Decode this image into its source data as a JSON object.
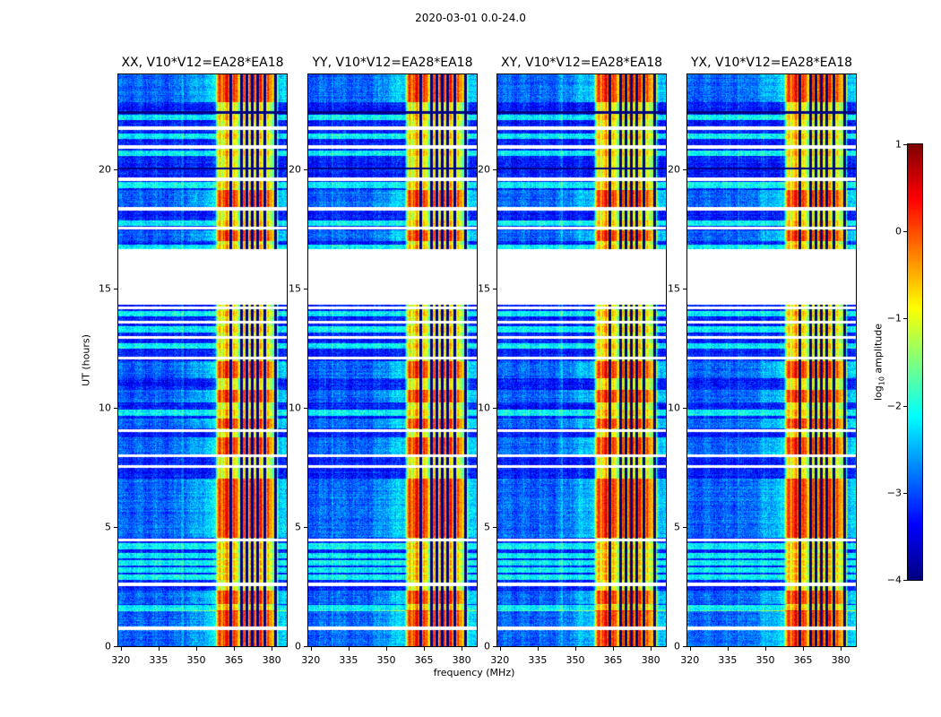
{
  "chart_data": {
    "type": "heatmap",
    "title": "2020-03-01 0.0-24.0",
    "xlabel": "frequency (MHz)",
    "ylabel": "UT (hours)",
    "xlim": [
      319,
      386
    ],
    "ylim": [
      0,
      24
    ],
    "x_ticks": [
      320,
      335,
      350,
      365,
      380
    ],
    "y_ticks": [
      0,
      5,
      10,
      15,
      20
    ],
    "colors": {
      "figure_background": "#ffffff",
      "axes_text": "#000000",
      "low_amplitude_blue": "#0030ff",
      "band_yellow": "#e8e800",
      "band_red": "#ff3c00"
    },
    "panels": [
      {
        "title": "XX, V10*V12=EA28*EA18",
        "seed": 11
      },
      {
        "title": "YY, V10*V12=EA28*EA18",
        "seed": 23
      },
      {
        "title": "XY, V10*V12=EA28*EA18",
        "seed": 37
      },
      {
        "title": "YX, V10*V12=EA28*EA18",
        "seed": 49
      }
    ],
    "colorbar": {
      "label_prefix": "log",
      "label_sub": "10",
      "label_suffix": " amplitude",
      "ticks": [
        "1",
        "0",
        "−1",
        "−2",
        "−3",
        "−4"
      ],
      "vmin": -4,
      "vmax": 1,
      "colormap": "jet"
    },
    "features": {
      "background_level": -3.25,
      "band": {
        "f0": 358,
        "f1": 382,
        "level": -1.05
      },
      "data_gap_hours": [
        14.35,
        16.65
      ],
      "bright_intervals": [
        [
          0,
          1.5
        ],
        [
          1.75,
          2.35
        ],
        [
          4.55,
          7.05
        ],
        [
          8.05,
          8.75
        ],
        [
          9.15,
          9.55
        ],
        [
          10.25,
          10.75
        ],
        [
          11.25,
          11.95
        ],
        [
          17.0,
          17.45
        ],
        [
          18.45,
          19.15
        ],
        [
          22.85,
          24
        ]
      ],
      "cyan_stripe_hours": [
        22.2,
        21.4,
        20.7,
        19.35,
        17.75,
        16.75,
        13.95,
        13.3,
        12.6,
        9.8,
        4.2,
        3.8,
        3.5,
        3.2,
        2.9,
        1.6
      ],
      "white_line_hours": [
        21.75,
        20.95,
        19.6,
        18.35,
        17.55,
        14.2,
        13.6,
        12.95,
        12.1,
        9.05,
        8.0,
        7.55,
        4.45,
        2.6,
        0.75
      ],
      "dark_line_hours": [
        20.05,
        22.4
      ],
      "dark_channel_mhz": [
        363.8,
        368.0,
        370.2,
        372.3,
        374.4,
        377.2,
        381.6
      ]
    }
  }
}
